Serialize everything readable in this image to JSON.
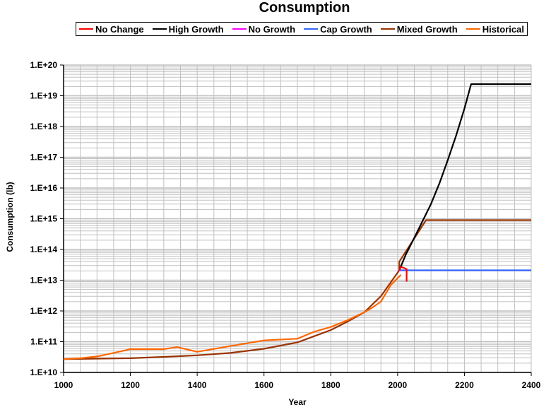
{
  "chart_data": {
    "type": "line",
    "title": "Consumption",
    "xlabel": "Year",
    "ylabel": "Consumption (lb)",
    "yscale": "log",
    "xlim": [
      1000,
      2400
    ],
    "ylim": [
      10000000000.0,
      1e+20
    ],
    "grid": true,
    "legend_position": "top",
    "x_ticks": [
      1000,
      1200,
      1400,
      1600,
      1800,
      2000,
      2200,
      2400
    ],
    "x_tick_labels": [
      "1000",
      "1200",
      "1400",
      "1600",
      "1800",
      "2000",
      "2200",
      "2400"
    ],
    "y_ticks": [
      10000000000.0,
      100000000000.0,
      1000000000000.0,
      10000000000000.0,
      100000000000000.0,
      1000000000000000.0,
      1e+16,
      1e+17,
      1e+18,
      1e+19,
      1e+20
    ],
    "y_tick_labels": [
      "1.E+10",
      "1.E+11",
      "1.E+12",
      "1.E+13",
      "1.E+14",
      "1.E+15",
      "1.E+16",
      "1.E+17",
      "1.E+18",
      "1.E+19",
      "1.E+20"
    ],
    "series": [
      {
        "name": "No Change",
        "color": "#FF0000",
        "points": [
          [
            2005,
            21000000000000.0
          ],
          [
            2010,
            27000000000000.0
          ],
          [
            2015,
            26000000000000.0
          ],
          [
            2027,
            23000000000000.0
          ],
          [
            2027,
            9000000000000.0
          ]
        ]
      },
      {
        "name": "High Growth",
        "color": "#000000",
        "points": [
          [
            2005,
            21000000000000.0
          ],
          [
            2025,
            70000000000000.0
          ],
          [
            2050,
            240000000000000.0
          ],
          [
            2075,
            850000000000000.0
          ],
          [
            2100,
            3000000000000000.0
          ],
          [
            2125,
            1.4e+16
          ],
          [
            2150,
            8e+16
          ],
          [
            2175,
            5e+17
          ],
          [
            2200,
            3.8e+18
          ],
          [
            2220,
            2.4e+19
          ],
          [
            2400,
            2.4e+19
          ]
        ]
      },
      {
        "name": "No Growth",
        "color": "#FF00FF",
        "points": [
          [
            2005,
            21000000000000.0
          ],
          [
            2010,
            21000000000000.0
          ]
        ]
      },
      {
        "name": "Cap Growth",
        "color": "#3366FF",
        "points": [
          [
            2005,
            21000000000000.0
          ],
          [
            2400,
            21000000000000.0
          ]
        ]
      },
      {
        "name": "Mixed Growth",
        "color": "#993300",
        "points": [
          [
            1000,
            27000000000.0
          ],
          [
            1100,
            28000000000.0
          ],
          [
            1200,
            29000000000.0
          ],
          [
            1300,
            32000000000.0
          ],
          [
            1400,
            36000000000.0
          ],
          [
            1500,
            43000000000.0
          ],
          [
            1600,
            59000000000.0
          ],
          [
            1700,
            95000000000.0
          ],
          [
            1750,
            150000000000.0
          ],
          [
            1800,
            240000000000.0
          ],
          [
            1850,
            450000000000.0
          ],
          [
            1900,
            900000000000.0
          ],
          [
            1950,
            3000000000000.0
          ],
          [
            2005,
            21000000000000.0
          ],
          [
            2005,
            40000000000000.0
          ],
          [
            2085,
            900000000000000.0
          ],
          [
            2400,
            900000000000000.0
          ]
        ]
      },
      {
        "name": "Historical",
        "color": "#FF6600",
        "points": [
          [
            1000,
            27000000000.0
          ],
          [
            1050,
            29000000000.0
          ],
          [
            1100,
            33000000000.0
          ],
          [
            1150,
            43000000000.0
          ],
          [
            1200,
            57000000000.0
          ],
          [
            1300,
            57000000000.0
          ],
          [
            1340,
            67000000000.0
          ],
          [
            1400,
            47000000000.0
          ],
          [
            1500,
            72000000000.0
          ],
          [
            1600,
            110000000000.0
          ],
          [
            1700,
            125000000000.0
          ],
          [
            1750,
            210000000000.0
          ],
          [
            1800,
            300000000000.0
          ],
          [
            1850,
            500000000000.0
          ],
          [
            1900,
            900000000000.0
          ],
          [
            1920,
            1200000000000.0
          ],
          [
            1950,
            2000000000000.0
          ],
          [
            1980,
            7000000000000.0
          ],
          [
            2010,
            15000000000000.0
          ]
        ]
      }
    ]
  }
}
